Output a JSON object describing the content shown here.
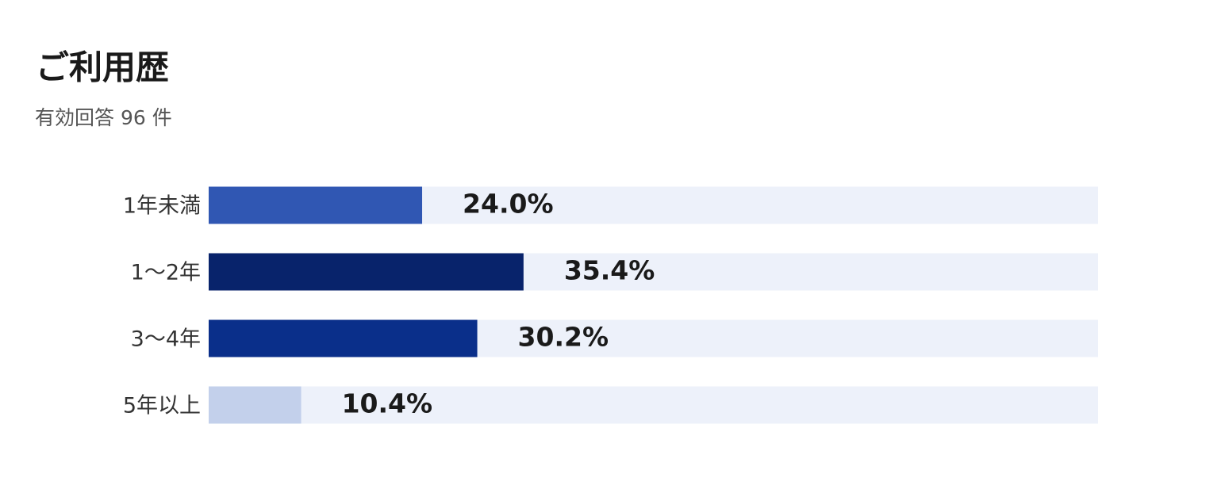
{
  "chart_data": {
    "type": "bar",
    "orientation": "horizontal",
    "title": "ご利用歴",
    "subtitle": "有効回答 96 件",
    "categories": [
      "1年未満",
      "1〜2年",
      "3〜4年",
      "5年以上"
    ],
    "values": [
      24.0,
      35.4,
      30.2,
      10.4
    ],
    "value_labels": [
      "24.0%",
      "35.4%",
      "30.2%",
      "10.4%"
    ],
    "colors": [
      "#3057b3",
      "#08236b",
      "#0a2f8a",
      "#c3d0eb"
    ],
    "track_color": "#edf1fa",
    "xlim": [
      0,
      100
    ]
  }
}
